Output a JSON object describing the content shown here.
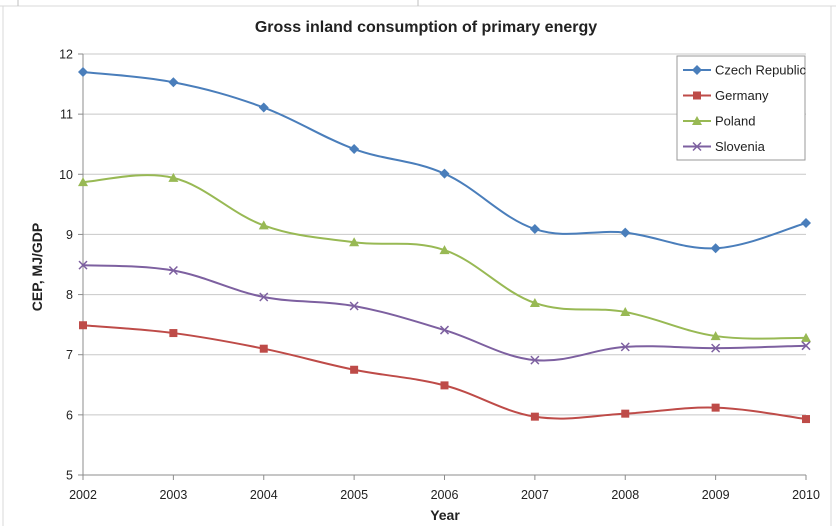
{
  "chart_data": {
    "type": "line",
    "title": "Gross inland consumption of primary energy",
    "xlabel": "Year",
    "ylabel": "CEP, MJ/GDP",
    "x": [
      "2002",
      "2003",
      "2004",
      "2005",
      "2006",
      "2007",
      "2008",
      "2009",
      "2010"
    ],
    "ylim": [
      5,
      12
    ],
    "yticks": [
      "5",
      "6",
      "7",
      "8",
      "9",
      "10",
      "11",
      "12"
    ],
    "grid": "horizontal",
    "legend": "top-right",
    "series": [
      {
        "name": "Czech Republic",
        "color": "#4a7ebb",
        "marker": "diamond",
        "values": [
          11.7,
          11.53,
          11.11,
          10.42,
          10.01,
          9.09,
          9.03,
          8.77,
          9.19
        ]
      },
      {
        "name": "Germany",
        "color": "#be4b48",
        "marker": "square",
        "values": [
          7.49,
          7.36,
          7.1,
          6.75,
          6.49,
          5.97,
          6.02,
          6.12,
          5.93
        ]
      },
      {
        "name": "Poland",
        "color": "#98b954",
        "marker": "triangle",
        "values": [
          9.87,
          9.94,
          9.15,
          8.87,
          8.74,
          7.86,
          7.71,
          7.31,
          7.28
        ]
      },
      {
        "name": "Slovenia",
        "color": "#7d60a0",
        "marker": "x",
        "values": [
          8.49,
          8.4,
          7.96,
          7.81,
          7.41,
          6.91,
          7.13,
          7.11,
          7.15
        ]
      }
    ]
  }
}
